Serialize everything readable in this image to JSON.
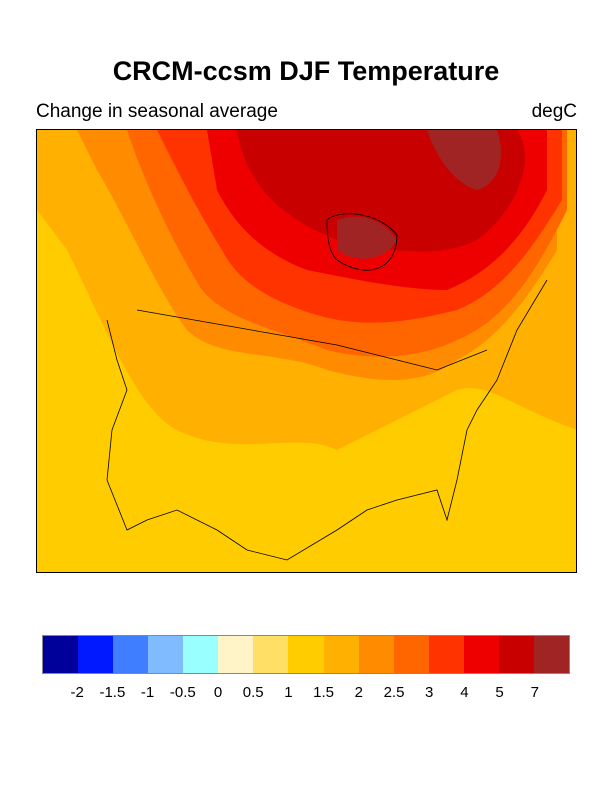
{
  "title": "CRCM-ccsm DJF Temperature",
  "subtitle_left": "Change in seasonal average",
  "subtitle_right": "degC",
  "colorbar": {
    "colors": [
      "#00009a",
      "#0019ff",
      "#3f7fff",
      "#80baff",
      "#99ffff",
      "#fff4c7",
      "#ffdf66",
      "#ffcc00",
      "#ffb000",
      "#ff8c00",
      "#ff6600",
      "#ff3300",
      "#ee0000",
      "#c80000",
      "#a02424"
    ],
    "labels": [
      "-2",
      "-1.5",
      "-1",
      "-0.5",
      "0",
      "0.5",
      "1",
      "1.5",
      "2",
      "2.5",
      "3",
      "4",
      "5",
      "7"
    ]
  }
}
